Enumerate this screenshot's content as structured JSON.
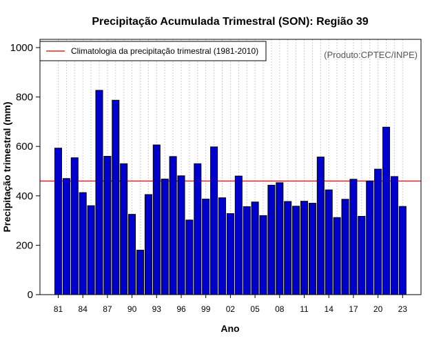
{
  "chart_data": {
    "type": "bar",
    "title": "Precipitação Acumulada Trimestral (SON): Região 39",
    "xlabel": "Ano",
    "ylabel": "Precipitação trimestral (mm)",
    "ylim": [
      0,
      1000
    ],
    "yticks": [
      0,
      200,
      400,
      600,
      800,
      1000
    ],
    "x_tick_labels": [
      "81",
      "84",
      "87",
      "90",
      "93",
      "96",
      "99",
      "02",
      "05",
      "08",
      "11",
      "14",
      "17",
      "20",
      "23"
    ],
    "categories": [
      "1981",
      "1982",
      "1983",
      "1984",
      "1985",
      "1986",
      "1987",
      "1988",
      "1989",
      "1990",
      "1991",
      "1992",
      "1993",
      "1994",
      "1995",
      "1996",
      "1997",
      "1998",
      "1999",
      "2000",
      "2001",
      "2002",
      "2003",
      "2004",
      "2005",
      "2006",
      "2007",
      "2008",
      "2009",
      "2010",
      "2011",
      "2012",
      "2013",
      "2014",
      "2015",
      "2016",
      "2017",
      "2018",
      "2019",
      "2020",
      "2021",
      "2022",
      "2023"
    ],
    "values": [
      593,
      470,
      554,
      413,
      360,
      827,
      560,
      787,
      530,
      325,
      180,
      405,
      606,
      468,
      559,
      481,
      302,
      530,
      387,
      598,
      392,
      328,
      480,
      356,
      375,
      320,
      443,
      453,
      377,
      358,
      378,
      370,
      557,
      424,
      312,
      386,
      467,
      317,
      460,
      508,
      678,
      478,
      357
    ],
    "bar_color": "#0000cc",
    "reference_line": {
      "value": 460,
      "color": "#ee2222",
      "label": "Climatologia da precipitação trimestral (1981-2010)"
    },
    "legend_position": "top-left",
    "grid": "vertical dotted",
    "credit": "(Produto:CPTEC/INPE)"
  }
}
